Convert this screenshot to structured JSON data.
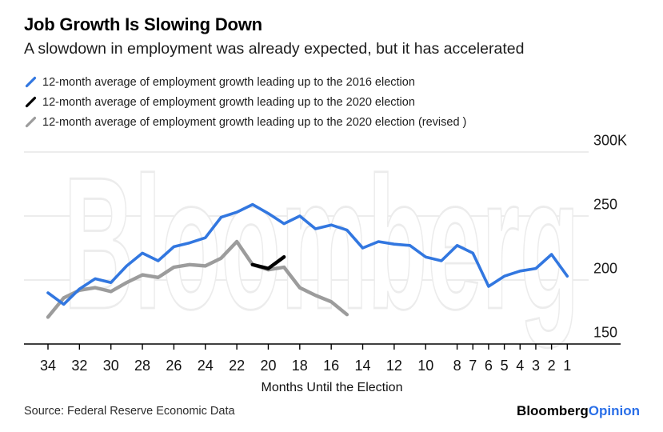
{
  "header": {
    "title": "Job Growth Is Slowing Down",
    "subtitle": "A slowdown in employment was already expected, but it has accelerated"
  },
  "legend": {
    "items": [
      {
        "label": "12-month average of employment growth leading up to the 2016 election",
        "color": "#3277E0"
      },
      {
        "label": "12-month average of employment growth leading up to the 2020 election",
        "color": "#000000"
      },
      {
        "label": "12-month average of employment growth leading up to the 2020 election (revised )",
        "color": "#9C9C9C"
      }
    ]
  },
  "watermark": "Bloomberg",
  "colors": {
    "accent_blue": "#3277E0",
    "series_black": "#000000",
    "series_gray": "#9C9C9C",
    "grid": "#E6E6E6",
    "axis": "#000000",
    "watermark_outline": "#ECECEC",
    "brand_blue": "#2A6FE8"
  },
  "chart_data": {
    "type": "line",
    "title": "Job Growth Is Slowing Down",
    "subtitle": "A slowdown in employment was already expected, but it has accelerated",
    "xlabel": "Months Until the Election",
    "ylabel": "",
    "grid": "horizontal",
    "legend_position": "top-left",
    "x_axis": {
      "range": [
        34,
        1
      ],
      "direction": "descending",
      "ticks": [
        34,
        32,
        30,
        28,
        26,
        24,
        22,
        20,
        18,
        16,
        14,
        12,
        10,
        8,
        7,
        6,
        5,
        4,
        3,
        2,
        1
      ]
    },
    "y_axis": {
      "range": [
        150,
        300
      ],
      "unit": "K jobs",
      "ticks": [
        {
          "value": 300,
          "label": "300K"
        },
        {
          "value": 250,
          "label": "250"
        },
        {
          "value": 200,
          "label": "200"
        },
        {
          "value": 150,
          "label": "150"
        }
      ]
    },
    "series": [
      {
        "id": "2016",
        "name": "12-month average of employment growth leading up to the 2016 election",
        "color": "#3277E0",
        "width": 3.6,
        "x": [
          34,
          33,
          32,
          31,
          30,
          29,
          28,
          27,
          26,
          25,
          24,
          23,
          22,
          21,
          20,
          19,
          18,
          17,
          16,
          15,
          14,
          13,
          12,
          11,
          10,
          9,
          8,
          7,
          6,
          5,
          4,
          3,
          2,
          1
        ],
        "values": [
          190,
          181,
          193,
          201,
          198,
          211,
          221,
          215,
          226,
          229,
          233,
          249,
          253,
          259,
          252,
          244,
          250,
          240,
          243,
          239,
          225,
          230,
          228,
          227,
          218,
          215,
          227,
          221,
          195,
          203,
          207,
          209,
          220,
          203
        ]
      },
      {
        "id": "2020",
        "name": "12-month average of employment growth leading up to the 2020 election",
        "color": "#000000",
        "width": 4.4,
        "x": [
          21,
          20,
          19
        ],
        "values": [
          212,
          209,
          218
        ]
      },
      {
        "id": "2020-revised",
        "name": "12-month average of employment growth leading up to the 2020 election (revised )",
        "color": "#9C9C9C",
        "width": 4.4,
        "x": [
          34,
          33,
          32,
          31,
          30,
          29,
          28,
          27,
          26,
          25,
          24,
          23,
          22,
          21,
          20,
          19,
          18,
          17,
          16,
          15
        ],
        "values": [
          171,
          186,
          192,
          194,
          191,
          198,
          204,
          202,
          210,
          212,
          211,
          217,
          230,
          212,
          208,
          210,
          194,
          188,
          183,
          173
        ]
      }
    ]
  },
  "footer": {
    "source": "Source: Federal Reserve Economic Data",
    "brand_black": "Bloomberg",
    "brand_blue": "Opinion"
  }
}
